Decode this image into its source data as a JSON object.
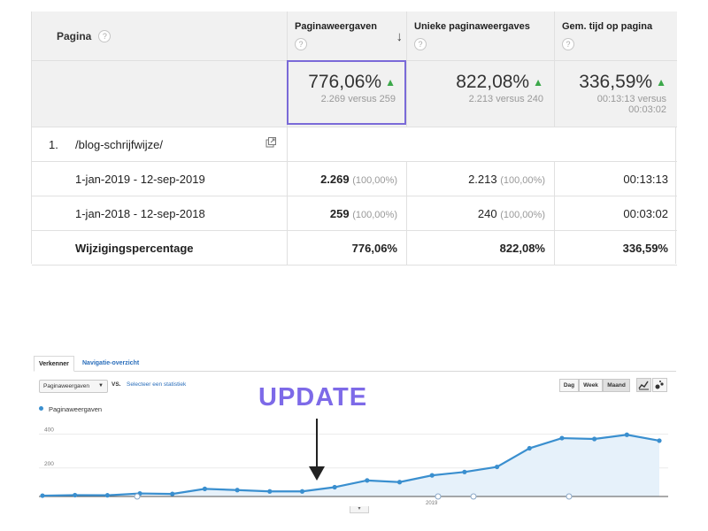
{
  "table": {
    "headers": {
      "pagina": "Pagina",
      "pageviews": "Paginaweergaven",
      "unique": "Unieke paginaweergaves",
      "time": "Gem. tijd op pagina",
      "help_icon_text": "?",
      "sort_icon": "↓"
    },
    "summary": {
      "pageviews": {
        "value": "776,06%",
        "sub": "2.269 versus 259"
      },
      "unique": {
        "value": "822,08%",
        "sub": "2.213 versus 240"
      },
      "time": {
        "value": "336,59%",
        "sub1": "00:13:13 versus",
        "sub2": "00:03:02"
      },
      "arrow": "▲"
    },
    "page_row": {
      "num": "1.",
      "path": "/blog-schrijfwijze/"
    },
    "rows": [
      {
        "label": "1-jan-2019 - 12-sep-2019",
        "pageviews": "2.269",
        "pageviews_pct": "(100,00%)",
        "unique": "2.213",
        "unique_pct": "(100,00%)",
        "time": "00:13:13"
      },
      {
        "label": "1-jan-2018 - 12-sep-2018",
        "pageviews": "259",
        "pageviews_pct": "(100,00%)",
        "unique": "240",
        "unique_pct": "(100,00%)",
        "time": "00:03:02"
      }
    ],
    "change_row": {
      "label": "Wijzigingspercentage",
      "pageviews": "776,06%",
      "unique": "822,08%",
      "time": "336,59%"
    }
  },
  "explorer": {
    "tabs": [
      "Verkenner",
      "Navigatie-overzicht"
    ],
    "metric": "Paginaweergaven",
    "caret": "▼",
    "vs": "VS.",
    "select_stat": "Selecteer een statistiek",
    "periods": [
      "Dag",
      "Week",
      "Maand"
    ],
    "legend": "Paginaweergaven",
    "annotation": "UPDATE",
    "handle": "▾"
  },
  "chart_data": {
    "type": "area",
    "series": [
      {
        "name": "Paginaweergaven",
        "color": "#3a8fcf",
        "values": [
          5,
          8,
          7,
          18,
          15,
          45,
          38,
          30,
          30,
          55,
          95,
          85,
          125,
          145,
          175,
          285,
          345,
          340,
          365,
          330
        ]
      }
    ],
    "y_ticks": [
      "400",
      "200"
    ],
    "ylim": [
      0,
      450
    ],
    "x_tick_labels": [
      "2019"
    ],
    "grid": "horizontal"
  }
}
